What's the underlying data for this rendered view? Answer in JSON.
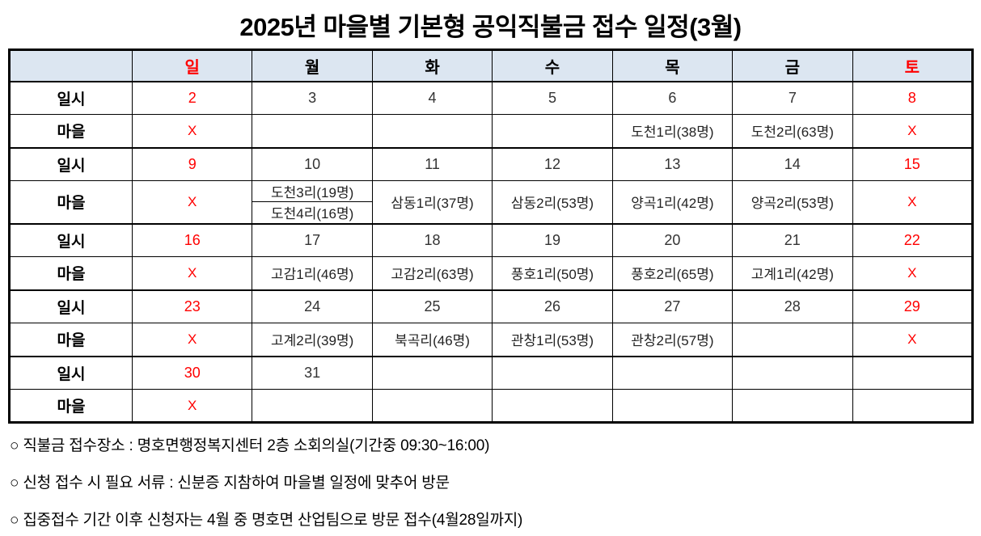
{
  "title": "2025년 마을별 기본형 공익직불금 접수 일정(3월)",
  "colors": {
    "red": "#ff0000",
    "header_bg": "#dce6f1",
    "border": "#000000"
  },
  "table": {
    "row_labels": {
      "date": "일시",
      "village": "마을"
    },
    "day_headers": [
      "일",
      "월",
      "화",
      "수",
      "목",
      "금",
      "토"
    ],
    "weeks": [
      {
        "dates": [
          "2",
          "3",
          "4",
          "5",
          "6",
          "7",
          "8"
        ],
        "villages": [
          "X",
          "",
          "",
          "",
          "도천1리(38명)",
          "도천2리(63명)",
          "X"
        ]
      },
      {
        "dates": [
          "9",
          "10",
          "11",
          "12",
          "13",
          "14",
          "15"
        ],
        "villages": [
          "X",
          {
            "top": "도천3리(19명)",
            "bottom": "도천4리(16명)"
          },
          "삼동1리(37명)",
          "삼동2리(53명)",
          "양곡1리(42명)",
          "양곡2리(53명)",
          "X"
        ]
      },
      {
        "dates": [
          "16",
          "17",
          "18",
          "19",
          "20",
          "21",
          "22"
        ],
        "villages": [
          "X",
          "고감1리(46명)",
          "고감2리(63명)",
          "풍호1리(50명)",
          "풍호2리(65명)",
          "고계1리(42명)",
          "X"
        ]
      },
      {
        "dates": [
          "23",
          "24",
          "25",
          "26",
          "27",
          "28",
          "29"
        ],
        "villages": [
          "X",
          "고계2리(39명)",
          "북곡리(46명)",
          "관창1리(53명)",
          "관창2리(57명)",
          "",
          "X"
        ]
      },
      {
        "dates": [
          "30",
          "31",
          "",
          "",
          "",
          "",
          ""
        ],
        "villages": [
          "X",
          "",
          "",
          "",
          "",
          "",
          ""
        ]
      }
    ]
  },
  "notes": [
    "○ 직불금 접수장소 : 명호면행정복지센터 2층 소회의실(기간중 09:30~16:00)",
    "○ 신청 접수 시 필요 서류 : 신분증 지참하여 마을별 일정에 맞추어 방문",
    "○ 집중접수 기간 이후 신청자는 4월 중 명호면 산업팀으로 방문 접수(4월28일까지)"
  ]
}
